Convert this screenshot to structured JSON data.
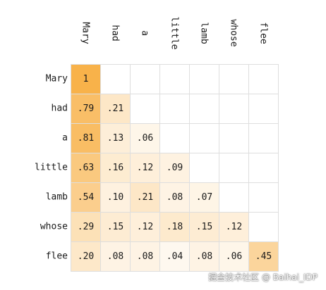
{
  "chart_data": {
    "type": "heatmap",
    "x_labels": [
      "Mary",
      "had",
      "a",
      "little",
      "lamb",
      "whose",
      "flee"
    ],
    "y_labels": [
      "Mary",
      "had",
      "a",
      "little",
      "lamb",
      "whose",
      "flee"
    ],
    "cells": [
      [
        "1",
        "",
        "",
        "",
        "",
        "",
        ""
      ],
      [
        ".79",
        ".21",
        "",
        "",
        "",
        "",
        ""
      ],
      [
        ".81",
        ".13",
        ".06",
        "",
        "",
        "",
        ""
      ],
      [
        ".63",
        ".16",
        ".12",
        ".09",
        "",
        "",
        ""
      ],
      [
        ".54",
        ".10",
        ".21",
        ".08",
        ".07",
        "",
        ""
      ],
      [
        ".29",
        ".15",
        ".12",
        ".18",
        ".15",
        ".12",
        ""
      ],
      [
        ".20",
        ".08",
        ".08",
        ".04",
        ".08",
        ".06",
        ".45"
      ]
    ],
    "color_scale": {
      "low": "#ffffff",
      "high": "#f8b24a",
      "grid": "#dedede"
    }
  },
  "watermark": "掘金技术社区 @ Baihai_IDP"
}
